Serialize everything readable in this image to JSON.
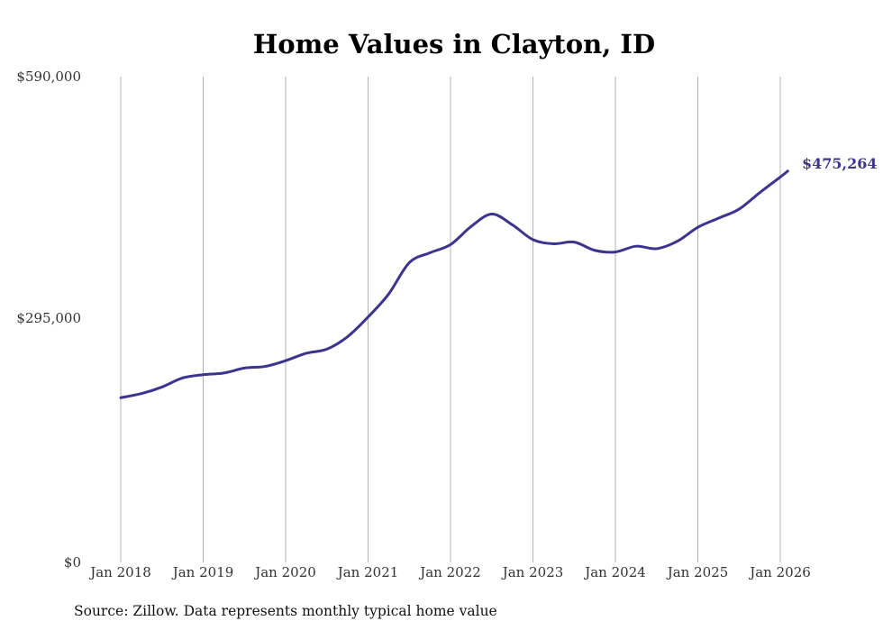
{
  "chart_data": {
    "type": "line",
    "title": "Home Values in Clayton, ID",
    "xlabel": "",
    "ylabel": "",
    "source": "Source: Zillow. Data represents monthly typical home value",
    "y_ticks": [
      "$590,000",
      "$295,000",
      "$0"
    ],
    "ylim": [
      0,
      590000
    ],
    "x_ticks": [
      "Jan 2018",
      "Jan 2019",
      "Jan 2020",
      "Jan 2021",
      "Jan 2022",
      "Jan 2023",
      "Jan 2024",
      "Jan 2025",
      "Jan 2026"
    ],
    "x_tick_years": [
      2018,
      2019,
      2020,
      2021,
      2022,
      2023,
      2024,
      2025,
      2026
    ],
    "xlim": [
      2018,
      2026.09
    ],
    "end_label": "$475,264",
    "colors": {
      "line": "#3b3491",
      "grid": "#b3b3b3"
    },
    "series": [
      {
        "name": "Typical home value",
        "x": [
          2018.0,
          2018.25,
          2018.5,
          2018.75,
          2019.0,
          2019.25,
          2019.5,
          2019.75,
          2020.0,
          2020.25,
          2020.5,
          2020.75,
          2021.0,
          2021.25,
          2021.5,
          2021.75,
          2022.0,
          2022.25,
          2022.5,
          2022.75,
          2023.0,
          2023.25,
          2023.5,
          2023.75,
          2024.0,
          2024.25,
          2024.5,
          2024.75,
          2025.0,
          2025.25,
          2025.5,
          2025.75,
          2026.0,
          2026.09
        ],
        "values": [
          200000,
          205000,
          213000,
          224000,
          228000,
          230000,
          236000,
          238000,
          245000,
          254000,
          259000,
          274000,
          298000,
          326000,
          364000,
          376000,
          386000,
          408000,
          423000,
          410000,
          392000,
          387000,
          389000,
          379000,
          377000,
          384000,
          381000,
          390000,
          407000,
          418000,
          429000,
          449000,
          468000,
          475264
        ]
      }
    ]
  }
}
